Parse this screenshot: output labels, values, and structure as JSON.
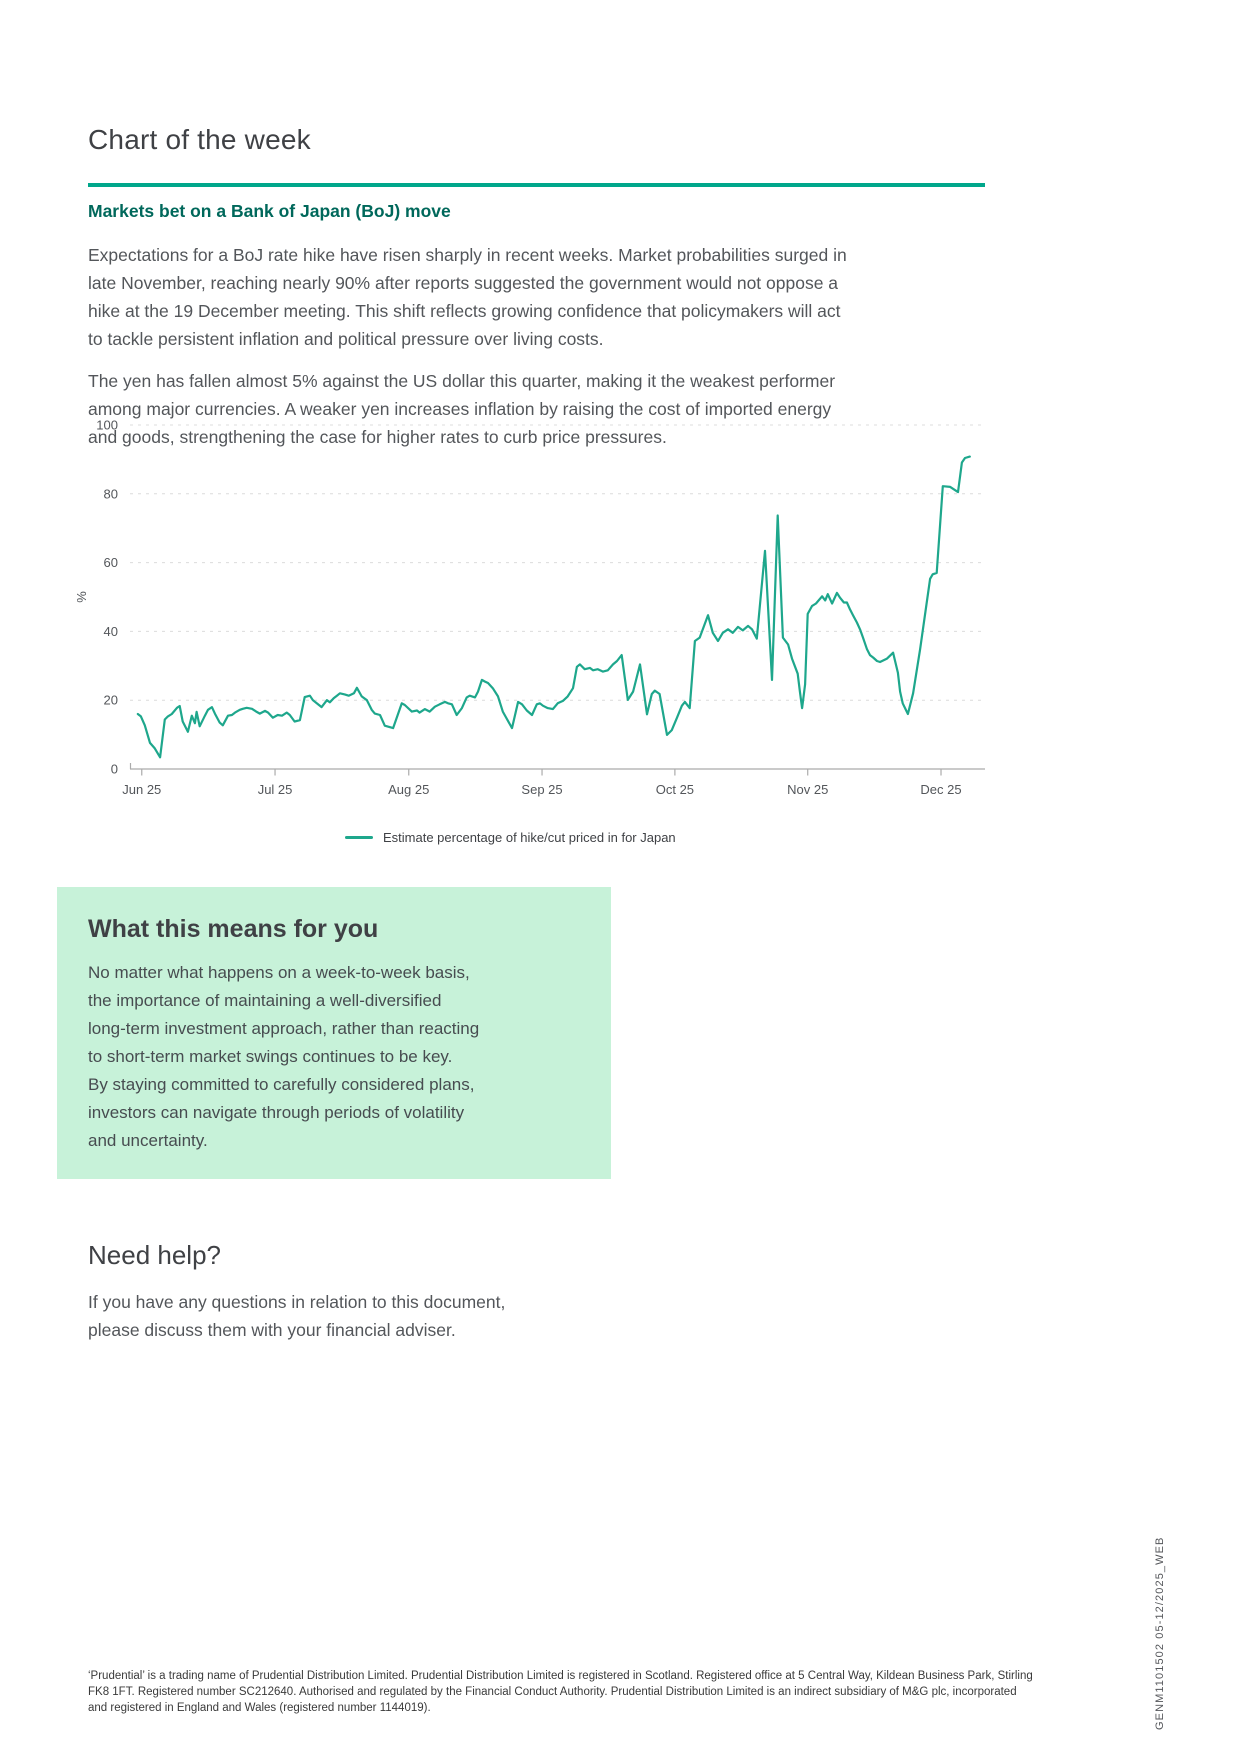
{
  "document": {
    "title": "Chart of the week",
    "subheading": "Markets bet on a Bank of Japan (BoJ) move",
    "paragraph1_lines": [
      "Expectations for a BoJ rate hike have risen sharply in recent weeks. Market probabilities surged in",
      "late November, reaching nearly 90% after reports suggested the government would not oppose a",
      "hike at the 19 December meeting. This shift reflects growing confidence that policymakers will act",
      "to tackle persistent inflation and political pressure over living costs."
    ],
    "paragraph2_lines": [
      "The yen has fallen almost 5% against the US dollar this quarter, making it the weakest performer",
      "among major currencies. A weaker yen increases inflation by raising the cost of imported energy",
      "and goods, strengthening the case for higher rates to curb price pressures."
    ]
  },
  "chart_data": {
    "type": "line",
    "title": "",
    "xlabel": "",
    "ylabel": "%",
    "ylim": [
      0,
      100
    ],
    "yticks": [
      0,
      20,
      40,
      60,
      80,
      100
    ],
    "grid": "horizontal-dashed",
    "legend_position": "bottom-center",
    "x_unit": "days since 1 Jun 2025",
    "x_plot_range": [
      -1.8,
      194.5
    ],
    "x_ticks": [
      {
        "day": 0.9,
        "label": "Jun 25"
      },
      {
        "day": 31.5,
        "label": "Jul 25"
      },
      {
        "day": 62.2,
        "label": "Aug 25"
      },
      {
        "day": 92.8,
        "label": "Sep 25"
      },
      {
        "day": 123.3,
        "label": "Oct 25"
      },
      {
        "day": 153.8,
        "label": "Nov 25"
      },
      {
        "day": 184.4,
        "label": "Dec 25"
      }
    ],
    "series": [
      {
        "name": "Estimate percentage of hike/cut priced in for Japan",
        "color": "#1ea78c",
        "points": [
          [
            0,
            16
          ],
          [
            0.7,
            15.3
          ],
          [
            1.6,
            12.7
          ],
          [
            2.8,
            7.6
          ],
          [
            3.9,
            6
          ],
          [
            5.1,
            3.4
          ],
          [
            6.2,
            14.4
          ],
          [
            6.9,
            15.3
          ],
          [
            7.8,
            16
          ],
          [
            9,
            17.8
          ],
          [
            9.6,
            18.3
          ],
          [
            10.3,
            13.8
          ],
          [
            11.5,
            10.8
          ],
          [
            12.4,
            15.5
          ],
          [
            13.1,
            13.3
          ],
          [
            13.5,
            16.6
          ],
          [
            14.2,
            12.4
          ],
          [
            15.4,
            15.5
          ],
          [
            16.1,
            17.2
          ],
          [
            17,
            18
          ],
          [
            17.7,
            16.1
          ],
          [
            18.8,
            13.5
          ],
          [
            19.5,
            12.7
          ],
          [
            20.7,
            15.5
          ],
          [
            21.6,
            15.7
          ],
          [
            22.3,
            16.4
          ],
          [
            23.4,
            17.2
          ],
          [
            24.1,
            17.5
          ],
          [
            25,
            17.8
          ],
          [
            26.2,
            17.5
          ],
          [
            27.3,
            16.6
          ],
          [
            28,
            16.1
          ],
          [
            29.2,
            16.9
          ],
          [
            29.9,
            16.4
          ],
          [
            31,
            14.9
          ],
          [
            32.1,
            15.7
          ],
          [
            33.1,
            15.5
          ],
          [
            34.2,
            16.4
          ],
          [
            34.9,
            15.7
          ],
          [
            36,
            13.8
          ],
          [
            37.2,
            14.2
          ],
          [
            38.3,
            20.9
          ],
          [
            39.5,
            21.3
          ],
          [
            40.2,
            20
          ],
          [
            41.3,
            18.9
          ],
          [
            42.2,
            18
          ],
          [
            43.4,
            20
          ],
          [
            44.1,
            19.4
          ],
          [
            45,
            20.6
          ],
          [
            45.7,
            21.3
          ],
          [
            46.4,
            22
          ],
          [
            47.5,
            21.7
          ],
          [
            48.4,
            21.3
          ],
          [
            49.6,
            22
          ],
          [
            50.3,
            23.6
          ],
          [
            51.4,
            21.1
          ],
          [
            52.6,
            20
          ],
          [
            53.7,
            17.2
          ],
          [
            54.4,
            16.1
          ],
          [
            55.6,
            15.7
          ],
          [
            56.7,
            12.6
          ],
          [
            58.6,
            11.9
          ],
          [
            60.6,
            19.1
          ],
          [
            61.3,
            18.6
          ],
          [
            62.9,
            16.7
          ],
          [
            64.1,
            17
          ],
          [
            64.7,
            16.4
          ],
          [
            65.9,
            17.4
          ],
          [
            67,
            16.7
          ],
          [
            68.2,
            18.1
          ],
          [
            69.3,
            18.8
          ],
          [
            70.5,
            19.5
          ],
          [
            71.2,
            19.1
          ],
          [
            72.1,
            18.8
          ],
          [
            73.2,
            15.7
          ],
          [
            74.4,
            17.7
          ],
          [
            75.5,
            20.8
          ],
          [
            76.2,
            21.3
          ],
          [
            77.4,
            20.8
          ],
          [
            78.1,
            22.5
          ],
          [
            79,
            25.9
          ],
          [
            79.7,
            25.4
          ],
          [
            80.4,
            25
          ],
          [
            81.5,
            23.5
          ],
          [
            82.7,
            21.1
          ],
          [
            83.8,
            16.7
          ],
          [
            85.9,
            11.9
          ],
          [
            87.3,
            19.5
          ],
          [
            88.2,
            18.8
          ],
          [
            89.3,
            17
          ],
          [
            90.5,
            15.7
          ],
          [
            91.6,
            18.8
          ],
          [
            92.3,
            19.1
          ],
          [
            93,
            18.4
          ],
          [
            94.1,
            17.7
          ],
          [
            95.3,
            17.4
          ],
          [
            96.4,
            19.1
          ],
          [
            97.6,
            19.8
          ],
          [
            98.7,
            21.1
          ],
          [
            99.9,
            23.5
          ],
          [
            100.8,
            29.7
          ],
          [
            101.5,
            30.4
          ],
          [
            102.6,
            29
          ],
          [
            103.8,
            29.4
          ],
          [
            104.5,
            28.7
          ],
          [
            105.6,
            29
          ],
          [
            106.8,
            28.3
          ],
          [
            107.9,
            28.7
          ],
          [
            109.1,
            30.4
          ],
          [
            110,
            31.4
          ],
          [
            111.1,
            33.1
          ],
          [
            112.5,
            20.1
          ],
          [
            113.7,
            22.5
          ],
          [
            115.3,
            30.4
          ],
          [
            116.9,
            15.9
          ],
          [
            118,
            21.8
          ],
          [
            118.7,
            22.8
          ],
          [
            119.8,
            21.8
          ],
          [
            121.5,
            9.9
          ],
          [
            122.6,
            11.3
          ],
          [
            123.8,
            15
          ],
          [
            124.9,
            18.4
          ],
          [
            125.6,
            19.5
          ],
          [
            126.7,
            17.7
          ],
          [
            127.9,
            37.2
          ],
          [
            129,
            38.2
          ],
          [
            130.9,
            44.7
          ],
          [
            132,
            39.6
          ],
          [
            133.2,
            37.2
          ],
          [
            134.3,
            39.6
          ],
          [
            135.5,
            40.6
          ],
          [
            136.6,
            39.6
          ],
          [
            137.8,
            41.3
          ],
          [
            138.9,
            40.3
          ],
          [
            140.1,
            41.6
          ],
          [
            141,
            40.6
          ],
          [
            142.1,
            37.9
          ],
          [
            144,
            63.4
          ],
          [
            145.6,
            25.9
          ],
          [
            146.9,
            73.7
          ],
          [
            148.1,
            38.2
          ],
          [
            149.3,
            36.2
          ],
          [
            150.2,
            32.1
          ],
          [
            150.9,
            29.7
          ],
          [
            151.5,
            27.7
          ],
          [
            152,
            22.5
          ],
          [
            152.5,
            17.7
          ],
          [
            153.2,
            24.6
          ],
          [
            153.8,
            45.1
          ],
          [
            154.8,
            47.4
          ],
          [
            155.7,
            48.1
          ],
          [
            157.1,
            50.2
          ],
          [
            157.8,
            49
          ],
          [
            158.4,
            50.8
          ],
          [
            159.4,
            48.1
          ],
          [
            160.5,
            51.2
          ],
          [
            161.2,
            49.8
          ],
          [
            162.1,
            48.4
          ],
          [
            162.8,
            48.4
          ],
          [
            163.5,
            46.4
          ],
          [
            164.2,
            44.7
          ],
          [
            165.1,
            42.6
          ],
          [
            165.8,
            40.6
          ],
          [
            166.5,
            38.2
          ],
          [
            167.4,
            34.8
          ],
          [
            168.1,
            33.1
          ],
          [
            168.8,
            32.4
          ],
          [
            169.7,
            31.4
          ],
          [
            170.4,
            31.1
          ],
          [
            172,
            32.1
          ],
          [
            173.4,
            33.8
          ],
          [
            174.5,
            28
          ],
          [
            175,
            22.5
          ],
          [
            175.6,
            19.1
          ],
          [
            176.8,
            16
          ],
          [
            178,
            22
          ],
          [
            179.6,
            34.8
          ],
          [
            181.9,
            55.3
          ],
          [
            182.5,
            56.6
          ],
          [
            183.4,
            57
          ],
          [
            184.8,
            82.2
          ],
          [
            186.5,
            82
          ],
          [
            188.3,
            80.5
          ],
          [
            189.2,
            89.1
          ],
          [
            189.9,
            90.4
          ],
          [
            191,
            90.8
          ]
        ]
      }
    ]
  },
  "highlight_box": {
    "title": "What this means for you",
    "body_lines": [
      "No matter what happens on a week-to-week basis,",
      "the importance of maintaining a well-diversified",
      "long-term investment approach, rather than reacting",
      "to short-term market swings continues to be key.",
      "By staying committed to carefully considered plans,",
      "investors can navigate through periods of volatility",
      "and uncertainty."
    ]
  },
  "need_help": {
    "title": "Need help?",
    "body_lines": [
      "If you have any questions in relation to this document,",
      "please discuss them with your financial adviser."
    ]
  },
  "footer": {
    "legal_lines": [
      "‘Prudential’ is a trading name of Prudential Distribution Limited. Prudential Distribution Limited is registered in Scotland. Registered office at 5 Central Way, Kildean Business Park, Stirling",
      "FK8 1FT. Registered number SC212640. Authorised and regulated by the Financial Conduct Authority. Prudential Distribution Limited is an indirect subsidiary of M&G plc, incorporated",
      "and registered in England and Wales (registered number 1144019)."
    ],
    "doc_code": "GENM1101502 05-12/2025_WEB"
  },
  "colors": {
    "accent_teal_rule": "#00a78b",
    "subheading_teal": "#00685b",
    "chart_line_teal": "#1ea78c",
    "highlight_box_bg": "#c7f2d9",
    "heading_gray": "#3f4145",
    "body_gray": "#53565a",
    "gridline_gray": "#dcdcdc",
    "axis_gray": "#ababab"
  }
}
